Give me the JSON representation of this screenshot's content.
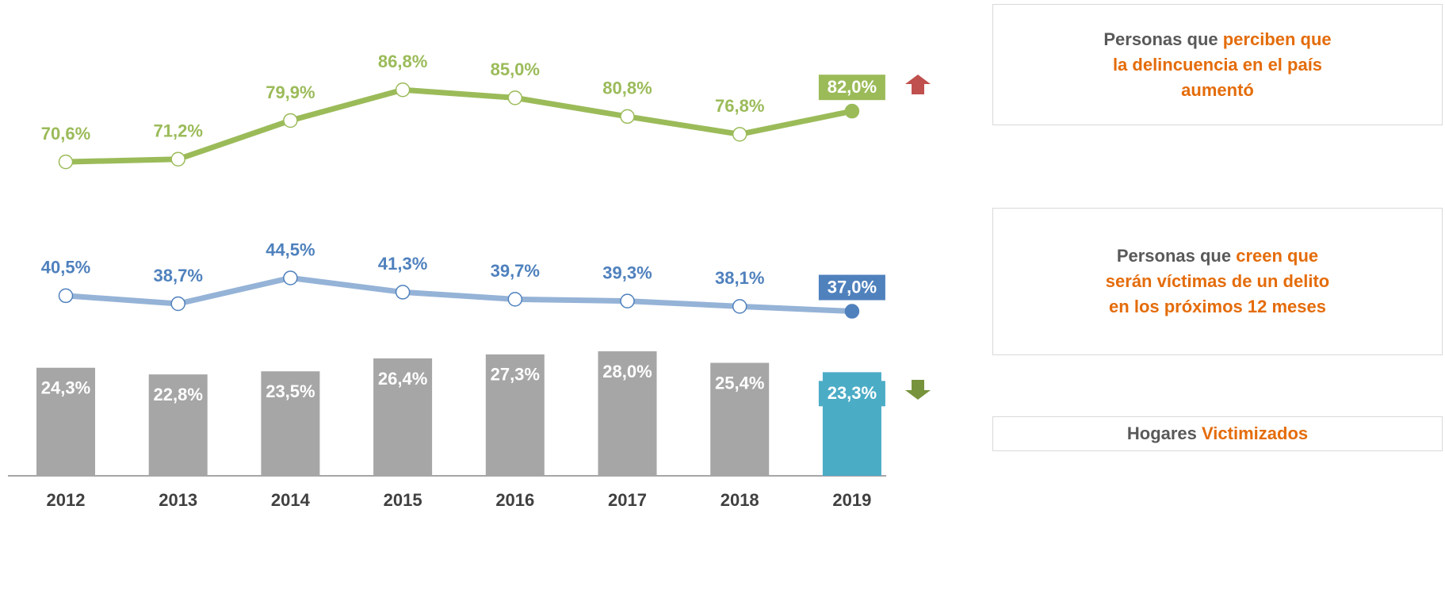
{
  "chart_data": {
    "type": "line_bar",
    "categories": [
      "2012",
      "2013",
      "2014",
      "2015",
      "2016",
      "2017",
      "2018",
      "2019"
    ],
    "ylim": [
      0,
      107
    ],
    "series": [
      {
        "type": "line",
        "color": "#9bbb59",
        "label_color": "#9bbb59",
        "highlight_color": "#9bbb59",
        "values": [
          70.6,
          71.2,
          79.9,
          86.8,
          85.0,
          80.8,
          76.8,
          82.0
        ],
        "value_labels": [
          "70,6%",
          "71,2%",
          "79,9%",
          "86,8%",
          "85,0%",
          "80,8%",
          "76,8%",
          "82,0%"
        ]
      },
      {
        "type": "line",
        "color": "#95b3d7",
        "label_color": "#4f81bd",
        "highlight_color": "#4f81bd",
        "values": [
          40.5,
          38.7,
          44.5,
          41.3,
          39.7,
          39.3,
          38.1,
          37.0
        ],
        "value_labels": [
          "40,5%",
          "38,7%",
          "44,5%",
          "41,3%",
          "39,7%",
          "39,3%",
          "38,1%",
          "37,0%"
        ]
      },
      {
        "type": "bar",
        "color": "#a6a6a6",
        "label_color": "#ffffff",
        "highlight_color": "#4bacc6",
        "values": [
          24.3,
          22.8,
          23.5,
          26.4,
          27.3,
          28.0,
          25.4,
          23.3
        ],
        "value_labels": [
          "24,3%",
          "22,8%",
          "23,5%",
          "26,4%",
          "27,3%",
          "28,0%",
          "25,4%",
          "23,3%"
        ]
      }
    ],
    "legend_boxes": [
      {
        "parts": [
          {
            "text": "Personas que ",
            "highlight": false
          },
          {
            "text": "perciben que la delincuencia en el país aumentó",
            "highlight": true
          }
        ]
      },
      {
        "parts": [
          {
            "text": "Personas que ",
            "highlight": false
          },
          {
            "text": "creen que serán víctimas de un delito en los próximos 12 meses",
            "highlight": true
          }
        ]
      },
      {
        "parts": [
          {
            "text": "Hogares ",
            "highlight": false
          },
          {
            "text": "Victimizados",
            "highlight": true
          }
        ]
      }
    ]
  }
}
